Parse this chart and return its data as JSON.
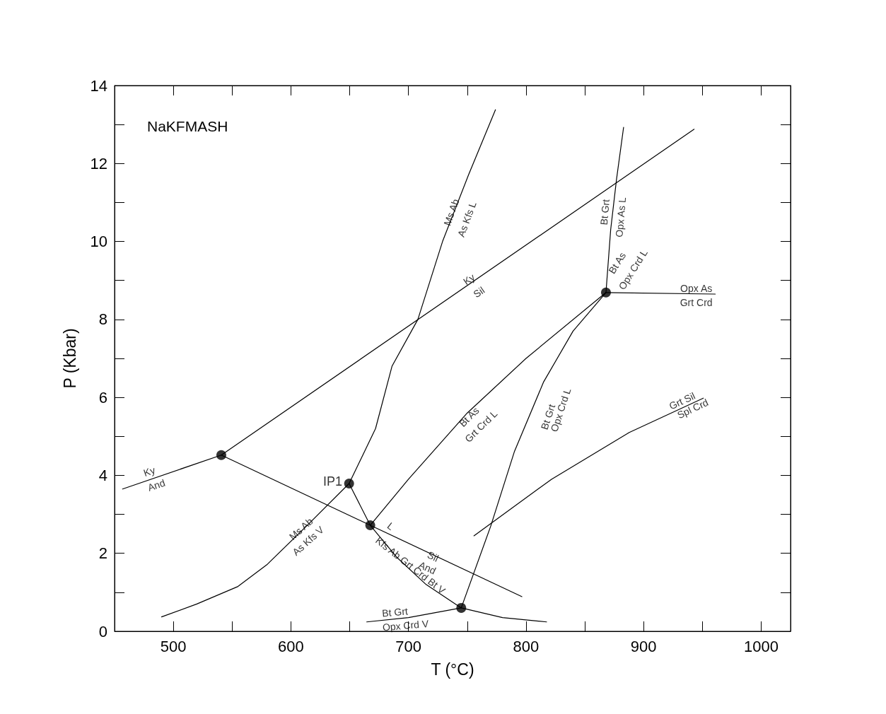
{
  "chart_data": {
    "type": "line",
    "xlabel": "T (°C)",
    "ylabel": "P (Kbar)",
    "xlim": [
      450,
      1025
    ],
    "ylim": [
      0,
      14
    ],
    "xticks": [
      500,
      {
        "value": 550,
        "label": null
      },
      600,
      {
        "value": 650,
        "label": null
      },
      700,
      {
        "value": 750,
        "label": null
      },
      800,
      {
        "value": 850,
        "label": null
      },
      900,
      {
        "value": 950,
        "label": null
      },
      1000
    ],
    "yticks": [
      0,
      {
        "value": 1,
        "label": null
      },
      2,
      {
        "value": 3,
        "label": null
      },
      4,
      {
        "value": 5,
        "label": null
      },
      6,
      {
        "value": 7,
        "label": null
      },
      8,
      {
        "value": 9,
        "label": null
      },
      10,
      {
        "value": 11,
        "label": null
      },
      12,
      {
        "value": 13,
        "label": null
      },
      14
    ],
    "grid": false,
    "marker": "none",
    "line_style": "solid",
    "series": [
      {
        "color": "#000000",
        "x": [
          456.8,
          540.8,
          943
        ],
        "values": [
          3.65,
          4.52,
          12.88
        ]
      },
      {
        "color": "#000000",
        "x": [
          540.8,
          667.5,
          796.5
        ],
        "values": [
          4.52,
          2.72,
          0.89
        ]
      },
      {
        "color": "#000000",
        "x": [
          649.5,
          672,
          686,
          708,
          729,
          751,
          774
        ],
        "values": [
          3.79,
          5.2,
          6.8,
          8,
          10,
          11.7,
          13.38
        ]
      },
      {
        "color": "#000000",
        "x": [
          490,
          520,
          555,
          580,
          615,
          649.5
        ],
        "values": [
          0.37,
          0.7,
          1.15,
          1.72,
          2.75,
          3.79
        ]
      },
      {
        "color": "#000000",
        "x": [
          649.5,
          667.5
        ],
        "values": [
          3.79,
          2.72
        ]
      },
      {
        "color": "#000000",
        "x": [
          667.5,
          690,
          715,
          744.9,
          780,
          817.5
        ],
        "values": [
          2.72,
          1.9,
          1.2,
          0.6,
          0.35,
          0.24
        ]
      },
      {
        "color": "#000000",
        "x": [
          667.5,
          700,
          750,
          800,
          868
        ],
        "values": [
          2.72,
          3.9,
          5.6,
          7.0,
          8.69
        ]
      },
      {
        "color": "#000000",
        "x": [
          744.9,
          770,
          790,
          815,
          840,
          868
        ],
        "values": [
          0.6,
          2.7,
          4.6,
          6.4,
          7.7,
          8.69
        ]
      },
      {
        "color": "#000000",
        "x": [
          868,
          872,
          877,
          883
        ],
        "values": [
          8.69,
          10.3,
          11.6,
          12.93
        ]
      },
      {
        "color": "#000000",
        "x": [
          868,
          961
        ],
        "values": [
          8.69,
          8.65
        ]
      },
      {
        "color": "#000000",
        "x": [
          664.5,
          700,
          744.9
        ],
        "values": [
          0.24,
          0.35,
          0.6
        ]
      },
      {
        "color": "#000000",
        "x": [
          755.7,
          821.7,
          887.8,
          950.8
        ],
        "values": [
          2.45,
          3.9,
          5.1,
          5.98
        ]
      },
      {
        "type": "scatter",
        "marker": "circle",
        "color": "#000000",
        "x": [
          540.8,
          649.5,
          667.5,
          744.9,
          868
        ],
        "values": [
          4.52,
          3.79,
          2.72,
          0.6,
          8.69
        ]
      }
    ],
    "annotations": [
      "NaKFMASH",
      "IP1",
      "Ky",
      "And",
      "Ky",
      "Sil",
      "Ms Ab",
      "As Kfs L",
      "Bt Grt",
      "Opx As L",
      "Bt As",
      "Opx Crd L",
      "Opx As",
      "Grt Crd",
      "Bt As",
      "Grt Crd L",
      "Bt Grt",
      "Opx Crd L",
      "Grt Sil",
      "Spl Crd",
      "Ms Ab",
      "As Kfs V",
      "L",
      "Kfs Ab Grt Crd Bt V",
      "Sil",
      "And",
      "Bt Grt",
      "Opx Crd V"
    ]
  }
}
